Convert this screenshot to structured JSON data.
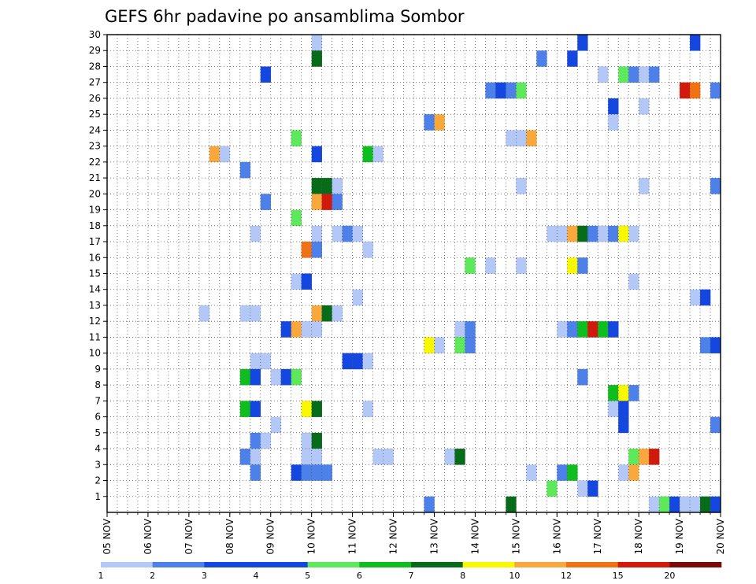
{
  "chart_data": {
    "type": "heatmap",
    "title": "GEFS 6hr padavine po ansamblima Sombor",
    "xlabel": "",
    "ylabel": "",
    "x_tick_labels": [
      "05 NOV",
      "06 NOV",
      "07 NOV",
      "08 NOV",
      "09 NOV",
      "10 NOV",
      "11 NOV",
      "12 NOV",
      "13 NOV",
      "14 NOV",
      "15 NOV",
      "16 NOV",
      "17 NOV",
      "18 NOV",
      "19 NOV",
      "20 NOV"
    ],
    "y_tick_labels": [
      "1",
      "2",
      "3",
      "4",
      "5",
      "6",
      "7",
      "8",
      "9",
      "10",
      "11",
      "12",
      "13",
      "14",
      "15",
      "16",
      "17",
      "18",
      "19",
      "20",
      "21",
      "22",
      "23",
      "24",
      "25",
      "26",
      "27",
      "28",
      "29",
      "30"
    ],
    "xlim": [
      0,
      60
    ],
    "ylim": [
      0,
      30
    ],
    "grid": true,
    "legend": {
      "position": "bottom",
      "labels": [
        "1",
        "2",
        "3",
        "4",
        "5",
        "6",
        "7",
        "8",
        "10",
        "12",
        "15",
        "20"
      ],
      "colors": [
        "#b4c8f8",
        "#4e80ea",
        "#1446e0",
        "#1446e0",
        "#5ee85c",
        "#0ebe1e",
        "#066c1a",
        "#f8f800",
        "#f8a83c",
        "#f07214",
        "#d21a0c",
        "#7c0a0a"
      ]
    },
    "bin_colors": [
      "#b4c8f8",
      "#4e80ea",
      "#1446e0",
      "#5ee85c",
      "#0ebe1e",
      "#066c1a",
      "#f8f800",
      "#f8a83c",
      "#f07214",
      "#d21a0c",
      "#7c0a0a"
    ],
    "cells_note_format": "[member, step(6h from 05 NOV 00z), bin 0..10]",
    "cells": [
      [
        30,
        20,
        0
      ],
      [
        30,
        46,
        2
      ],
      [
        30,
        57,
        2
      ],
      [
        29,
        20,
        5
      ],
      [
        29,
        42,
        1
      ],
      [
        29,
        45,
        2
      ],
      [
        28,
        15,
        2
      ],
      [
        28,
        48,
        0
      ],
      [
        28,
        50,
        3
      ],
      [
        28,
        51,
        1
      ],
      [
        28,
        52,
        0
      ],
      [
        28,
        53,
        1
      ],
      [
        27,
        37,
        1
      ],
      [
        27,
        38,
        2
      ],
      [
        27,
        39,
        1
      ],
      [
        27,
        40,
        3
      ],
      [
        27,
        56,
        9
      ],
      [
        27,
        57,
        8
      ],
      [
        27,
        59,
        1
      ],
      [
        26,
        49,
        2
      ],
      [
        26,
        52,
        0
      ],
      [
        25,
        31,
        1
      ],
      [
        25,
        32,
        7
      ],
      [
        25,
        49,
        0
      ],
      [
        24,
        18,
        3
      ],
      [
        24,
        39,
        0
      ],
      [
        24,
        40,
        0
      ],
      [
        24,
        41,
        7
      ],
      [
        23,
        10,
        7
      ],
      [
        23,
        11,
        0
      ],
      [
        23,
        20,
        2
      ],
      [
        23,
        25,
        4
      ],
      [
        23,
        26,
        0
      ],
      [
        22,
        13,
        1
      ],
      [
        21,
        20,
        5
      ],
      [
        21,
        21,
        5
      ],
      [
        21,
        22,
        0
      ],
      [
        21,
        40,
        0
      ],
      [
        21,
        52,
        0
      ],
      [
        21,
        59,
        1
      ],
      [
        20,
        15,
        1
      ],
      [
        20,
        20,
        7
      ],
      [
        20,
        21,
        9
      ],
      [
        20,
        22,
        1
      ],
      [
        19,
        18,
        3
      ],
      [
        18,
        14,
        0
      ],
      [
        18,
        20,
        0
      ],
      [
        18,
        22,
        0
      ],
      [
        18,
        23,
        1
      ],
      [
        18,
        24,
        0
      ],
      [
        18,
        43,
        0
      ],
      [
        18,
        44,
        0
      ],
      [
        18,
        45,
        7
      ],
      [
        18,
        46,
        5
      ],
      [
        18,
        47,
        1
      ],
      [
        18,
        48,
        0
      ],
      [
        18,
        49,
        1
      ],
      [
        18,
        50,
        6
      ],
      [
        18,
        51,
        0
      ],
      [
        17,
        19,
        8
      ],
      [
        17,
        20,
        1
      ],
      [
        17,
        25,
        0
      ],
      [
        16,
        35,
        3
      ],
      [
        16,
        37,
        0
      ],
      [
        16,
        40,
        0
      ],
      [
        16,
        45,
        6
      ],
      [
        16,
        46,
        1
      ],
      [
        15,
        18,
        0
      ],
      [
        15,
        19,
        2
      ],
      [
        15,
        51,
        0
      ],
      [
        14,
        24,
        0
      ],
      [
        14,
        57,
        0
      ],
      [
        14,
        58,
        2
      ],
      [
        13,
        9,
        0
      ],
      [
        13,
        13,
        0
      ],
      [
        13,
        14,
        0
      ],
      [
        13,
        20,
        7
      ],
      [
        13,
        21,
        5
      ],
      [
        13,
        22,
        0
      ],
      [
        12,
        17,
        2
      ],
      [
        12,
        18,
        7
      ],
      [
        12,
        19,
        0
      ],
      [
        12,
        20,
        0
      ],
      [
        12,
        34,
        0
      ],
      [
        12,
        35,
        1
      ],
      [
        12,
        44,
        0
      ],
      [
        12,
        45,
        1
      ],
      [
        12,
        46,
        4
      ],
      [
        12,
        47,
        9
      ],
      [
        12,
        48,
        4
      ],
      [
        12,
        49,
        2
      ],
      [
        11,
        31,
        6
      ],
      [
        11,
        32,
        0
      ],
      [
        11,
        34,
        3
      ],
      [
        11,
        35,
        1
      ],
      [
        11,
        58,
        1
      ],
      [
        11,
        59,
        2
      ],
      [
        10,
        14,
        0
      ],
      [
        10,
        15,
        0
      ],
      [
        10,
        23,
        2
      ],
      [
        10,
        24,
        2
      ],
      [
        10,
        25,
        0
      ],
      [
        9,
        13,
        4
      ],
      [
        9,
        14,
        2
      ],
      [
        9,
        16,
        0
      ],
      [
        9,
        17,
        2
      ],
      [
        9,
        18,
        3
      ],
      [
        9,
        46,
        1
      ],
      [
        8,
        49,
        4
      ],
      [
        8,
        50,
        6
      ],
      [
        8,
        51,
        1
      ],
      [
        7,
        13,
        4
      ],
      [
        7,
        14,
        2
      ],
      [
        7,
        19,
        6
      ],
      [
        7,
        20,
        5
      ],
      [
        7,
        25,
        0
      ],
      [
        7,
        49,
        0
      ],
      [
        7,
        50,
        2
      ],
      [
        6,
        16,
        0
      ],
      [
        6,
        50,
        2
      ],
      [
        6,
        59,
        1
      ],
      [
        5,
        14,
        1
      ],
      [
        5,
        15,
        0
      ],
      [
        5,
        19,
        0
      ],
      [
        5,
        20,
        5
      ],
      [
        4,
        13,
        1
      ],
      [
        4,
        14,
        0
      ],
      [
        4,
        19,
        0
      ],
      [
        4,
        20,
        0
      ],
      [
        4,
        26,
        0
      ],
      [
        4,
        27,
        0
      ],
      [
        4,
        33,
        0
      ],
      [
        4,
        34,
        5
      ],
      [
        4,
        51,
        3
      ],
      [
        4,
        52,
        7
      ],
      [
        4,
        53,
        9
      ],
      [
        3,
        14,
        1
      ],
      [
        3,
        18,
        2
      ],
      [
        3,
        19,
        1
      ],
      [
        3,
        20,
        1
      ],
      [
        3,
        21,
        1
      ],
      [
        3,
        41,
        0
      ],
      [
        3,
        44,
        1
      ],
      [
        3,
        45,
        4
      ],
      [
        3,
        50,
        0
      ],
      [
        3,
        51,
        7
      ],
      [
        2,
        43,
        3
      ],
      [
        2,
        46,
        0
      ],
      [
        2,
        47,
        2
      ],
      [
        1,
        31,
        1
      ],
      [
        1,
        39,
        5
      ],
      [
        1,
        53,
        0
      ],
      [
        1,
        54,
        3
      ],
      [
        1,
        55,
        2
      ],
      [
        1,
        56,
        0
      ],
      [
        1,
        57,
        0
      ],
      [
        1,
        58,
        5
      ],
      [
        1,
        59,
        2
      ]
    ]
  }
}
